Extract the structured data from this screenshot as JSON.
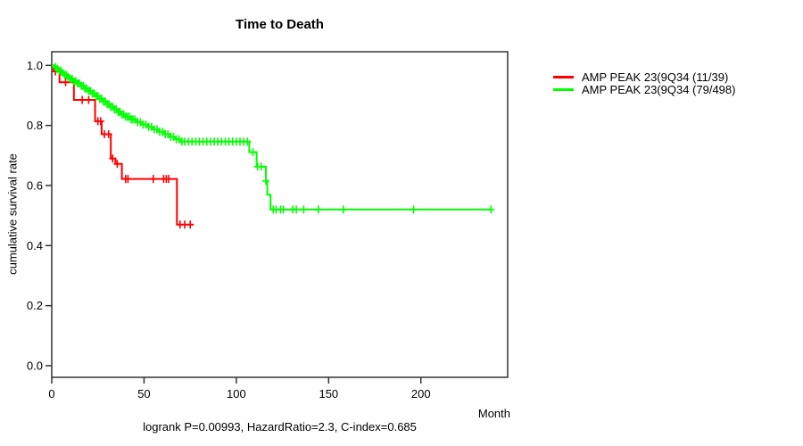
{
  "chart_data": {
    "type": "line",
    "subtype": "kaplan-meier-survival-step",
    "title": "Time to Death",
    "xlabel": "Month",
    "ylabel": "cumulative survival rate",
    "annotation": "logrank P=0.00993, HazardRatio=2.3, C-index=0.685",
    "xlim": [
      0,
      247
    ],
    "ylim": [
      0,
      1
    ],
    "x_ticks": [
      0,
      50,
      100,
      150,
      200
    ],
    "x_tick_labels": [
      "0",
      "50",
      "100",
      "150",
      "200"
    ],
    "y_ticks": [
      0.0,
      0.2,
      0.4,
      0.6,
      0.8,
      1.0
    ],
    "y_tick_labels": [
      "0.0",
      "0.2",
      "0.4",
      "0.6",
      "0.8",
      "1.0"
    ],
    "grid": false,
    "legend_position": "right-outside",
    "axis_color": "#333333",
    "series": [
      {
        "name": "AMP PEAK 23(9Q34 (11/39)",
        "color": "#ff0000",
        "end_month": 76.7,
        "steps": [
          [
            0,
            1.0
          ],
          [
            1,
            0.98
          ],
          [
            4.2,
            0.944
          ],
          [
            12,
            0.885
          ],
          [
            23.5,
            0.814
          ],
          [
            27,
            0.771
          ],
          [
            32,
            0.69
          ],
          [
            34.5,
            0.672
          ],
          [
            38,
            0.622
          ],
          [
            67.8,
            0.47
          ]
        ],
        "censor_months": [
          2,
          7.5,
          16.5,
          20,
          25,
          26.5,
          28.5,
          30.8,
          33,
          35.5,
          40,
          41.3,
          55,
          60.6,
          62,
          63.3,
          69.5,
          72,
          75
        ]
      },
      {
        "name": "AMP PEAK 23(9Q34 (79/498)",
        "color": "#00ff00",
        "end_month": 238,
        "steps": [
          [
            0,
            1.0
          ],
          [
            1,
            0.995
          ],
          [
            2.5,
            0.988
          ],
          [
            4,
            0.982
          ],
          [
            5.5,
            0.975
          ],
          [
            7,
            0.968
          ],
          [
            8.5,
            0.961
          ],
          [
            10,
            0.955
          ],
          [
            12,
            0.947
          ],
          [
            14,
            0.94
          ],
          [
            16,
            0.932
          ],
          [
            18,
            0.923
          ],
          [
            20,
            0.915
          ],
          [
            22,
            0.906
          ],
          [
            24,
            0.898
          ],
          [
            26,
            0.889
          ],
          [
            28,
            0.88
          ],
          [
            30,
            0.871
          ],
          [
            32,
            0.862
          ],
          [
            34,
            0.854
          ],
          [
            36,
            0.845
          ],
          [
            38,
            0.837
          ],
          [
            40,
            0.829
          ],
          [
            43,
            0.82
          ],
          [
            46,
            0.811
          ],
          [
            49,
            0.803
          ],
          [
            52,
            0.795
          ],
          [
            55,
            0.787
          ],
          [
            58,
            0.779
          ],
          [
            61,
            0.771
          ],
          [
            64,
            0.762
          ],
          [
            67,
            0.754
          ],
          [
            70,
            0.746
          ],
          [
            107,
            0.711
          ],
          [
            111,
            0.663
          ],
          [
            116,
            0.615
          ],
          [
            116.8,
            0.569
          ],
          [
            118.5,
            0.52
          ]
        ],
        "censor_months": [
          2,
          3,
          4,
          5,
          6,
          7,
          8,
          9,
          10,
          11,
          12,
          13,
          14,
          15,
          16,
          17,
          18,
          19,
          20,
          21,
          22,
          23,
          24,
          25,
          26,
          27,
          28,
          29,
          30,
          31,
          32,
          33,
          34,
          35,
          36,
          37,
          38,
          39,
          40,
          41,
          42,
          43,
          44,
          45,
          46.5,
          48,
          49.5,
          51,
          52.5,
          54,
          55.5,
          57,
          58.5,
          60,
          61.5,
          63,
          64.5,
          66,
          67.5,
          69,
          70.5,
          72,
          74,
          76,
          78,
          80,
          82,
          84,
          86,
          88,
          90,
          92,
          94,
          96,
          98,
          100,
          102,
          104,
          106,
          109,
          111.5,
          113.5,
          116,
          120,
          121.5,
          124,
          125.5,
          130.5,
          132.5,
          136.5,
          144.5,
          158,
          196,
          238
        ]
      }
    ]
  }
}
